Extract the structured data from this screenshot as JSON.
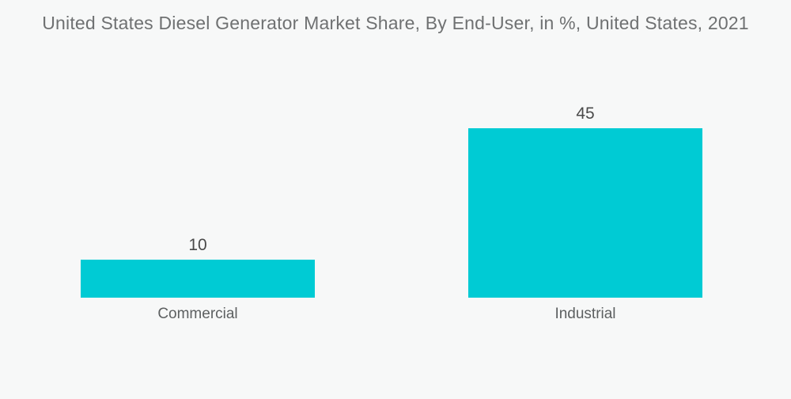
{
  "colors": {
    "background": "#f7f8f8",
    "bar": "#00CBD4",
    "title_text": "#6f7172",
    "value_text": "#4a4a4a",
    "category_text": "#5d6061"
  },
  "chart_data": {
    "type": "bar",
    "title": "United States Diesel Generator Market Share, By End-User, in %, United States, 2021",
    "categories": [
      "Commercial",
      "Industrial"
    ],
    "values": [
      10,
      45
    ],
    "unit": "%",
    "xlabel": "",
    "ylabel": "",
    "ylim": [
      0,
      45
    ],
    "grid": false,
    "legend": false,
    "axis_lines": false,
    "orientation": "vertical",
    "value_labels_shown": true
  }
}
